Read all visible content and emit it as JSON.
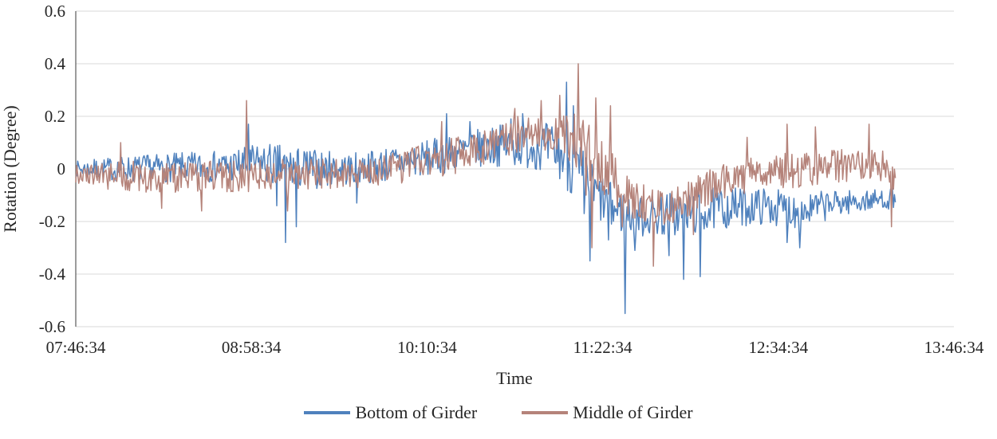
{
  "chart_data": {
    "type": "line",
    "title": "",
    "xlabel": "Time",
    "ylabel": "Rotation (Degree)",
    "x_ticks": [
      "07:46:34",
      "08:58:34",
      "10:10:34",
      "11:22:34",
      "12:34:34",
      "13:46:34"
    ],
    "x_tick_interval_seconds": 4320,
    "x_range_seconds": [
      0,
      21600
    ],
    "data_end_seconds": 20160,
    "y_ticks": [
      "0.6",
      "0.4",
      "0.2",
      "0",
      "-0.2",
      "-0.4",
      "-0.6"
    ],
    "ylim": [
      -0.6,
      0.6
    ],
    "grid": "horizontal",
    "grid_color": "#d9d9d9",
    "axis_color": "#595959",
    "legend_position": "bottom",
    "sample_interval_seconds": 24,
    "noise_seed": 7,
    "series": [
      {
        "name": "Bottom of Girder",
        "color": "#4f81bd",
        "trend": [
          [
            0,
            0,
            0.03
          ],
          [
            1200,
            0,
            0.05
          ],
          [
            3600,
            0.01,
            0.06
          ],
          [
            4700,
            0.02,
            0.08
          ],
          [
            5600,
            0,
            0.08
          ],
          [
            6800,
            0,
            0.06
          ],
          [
            7800,
            0.02,
            0.07
          ],
          [
            8640,
            0.04,
            0.07
          ],
          [
            9600,
            0.07,
            0.07
          ],
          [
            10400,
            0.09,
            0.08
          ],
          [
            11300,
            0.09,
            0.09
          ],
          [
            11900,
            0.06,
            0.11
          ],
          [
            12400,
            -0.02,
            0.12
          ],
          [
            12800,
            -0.1,
            0.1
          ],
          [
            13300,
            -0.16,
            0.09
          ],
          [
            13900,
            -0.18,
            0.08
          ],
          [
            14900,
            -0.17,
            0.09
          ],
          [
            15900,
            -0.15,
            0.08
          ],
          [
            16900,
            -0.14,
            0.07
          ],
          [
            17900,
            -0.16,
            0.07
          ],
          [
            18700,
            -0.13,
            0.05
          ],
          [
            19600,
            -0.12,
            0.04
          ],
          [
            20160,
            -0.11,
            0.04
          ]
        ],
        "spikes": [
          [
            4250,
            0.17
          ],
          [
            4950,
            -0.14
          ],
          [
            5170,
            -0.28
          ],
          [
            5420,
            -0.22
          ],
          [
            6900,
            -0.13
          ],
          [
            9130,
            0.21
          ],
          [
            9700,
            0.18
          ],
          [
            10700,
            0.19
          ],
          [
            11000,
            0.21
          ],
          [
            12075,
            0.33
          ],
          [
            12250,
            0.24
          ],
          [
            12500,
            -0.17
          ],
          [
            12650,
            -0.35
          ],
          [
            13100,
            -0.27
          ],
          [
            13510,
            -0.55
          ],
          [
            13750,
            -0.31
          ],
          [
            14600,
            -0.33
          ],
          [
            14950,
            -0.42
          ],
          [
            15350,
            -0.41
          ],
          [
            17500,
            -0.28
          ],
          [
            17800,
            -0.3
          ]
        ]
      },
      {
        "name": "Middle of Girder",
        "color": "#b5837a",
        "trend": [
          [
            0,
            -0.02,
            0.04
          ],
          [
            1200,
            -0.03,
            0.06
          ],
          [
            3600,
            -0.03,
            0.06
          ],
          [
            6000,
            -0.02,
            0.06
          ],
          [
            7200,
            -0.01,
            0.06
          ],
          [
            8400,
            0.02,
            0.07
          ],
          [
            9600,
            0.06,
            0.07
          ],
          [
            10400,
            0.1,
            0.07
          ],
          [
            11000,
            0.14,
            0.07
          ],
          [
            11700,
            0.15,
            0.08
          ],
          [
            12200,
            0.12,
            0.1
          ],
          [
            12600,
            0.07,
            0.12
          ],
          [
            13000,
            0.01,
            0.11
          ],
          [
            13400,
            -0.06,
            0.1
          ],
          [
            13800,
            -0.12,
            0.08
          ],
          [
            14400,
            -0.15,
            0.07
          ],
          [
            15000,
            -0.12,
            0.07
          ],
          [
            15600,
            -0.07,
            0.07
          ],
          [
            16200,
            -0.03,
            0.07
          ],
          [
            17000,
            -0.01,
            0.07
          ],
          [
            18000,
            0,
            0.07
          ],
          [
            19000,
            0.01,
            0.07
          ],
          [
            19600,
            0.02,
            0.07
          ],
          [
            20160,
            -0.02,
            0.08
          ]
        ],
        "spikes": [
          [
            1100,
            0.1
          ],
          [
            2100,
            -0.15
          ],
          [
            3100,
            -0.16
          ],
          [
            4210,
            0.26
          ],
          [
            5200,
            -0.16
          ],
          [
            9000,
            0.18
          ],
          [
            10800,
            0.23
          ],
          [
            11450,
            0.26
          ],
          [
            11900,
            0.28
          ],
          [
            12370,
            0.4
          ],
          [
            12550,
            -0.1
          ],
          [
            12700,
            -0.3
          ],
          [
            12800,
            0.27
          ],
          [
            13150,
            0.24
          ],
          [
            13450,
            -0.22
          ],
          [
            14200,
            -0.37
          ],
          [
            15200,
            -0.25
          ],
          [
            16500,
            0.12
          ],
          [
            17500,
            0.17
          ],
          [
            18200,
            0.16
          ],
          [
            19500,
            0.17
          ],
          [
            20060,
            -0.22
          ]
        ]
      }
    ]
  }
}
